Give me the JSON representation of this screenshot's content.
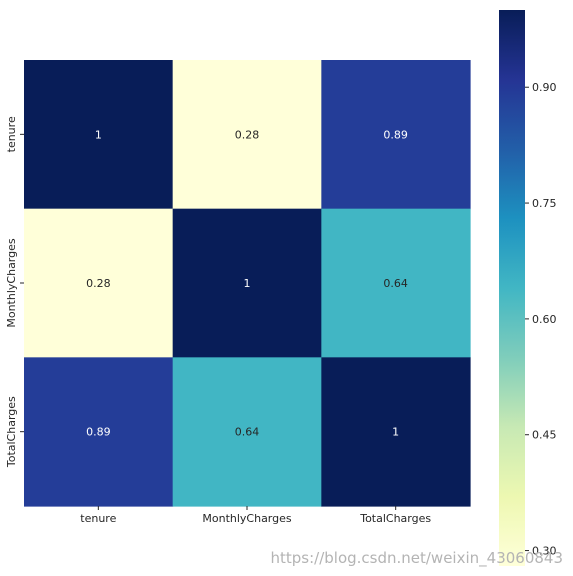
{
  "chart_data": {
    "type": "heatmap",
    "title": "",
    "xlabel": "",
    "ylabel": "",
    "x_categories": [
      "tenure",
      "MonthlyCharges",
      "TotalCharges"
    ],
    "y_categories": [
      "tenure",
      "MonthlyCharges",
      "TotalCharges"
    ],
    "values": [
      [
        1.0,
        0.28,
        0.89
      ],
      [
        0.28,
        1.0,
        0.64
      ],
      [
        0.89,
        0.64,
        1.0
      ]
    ],
    "annotations": [
      [
        "1",
        "0.28",
        "0.89"
      ],
      [
        "0.28",
        "1",
        "0.64"
      ],
      [
        "0.89",
        "0.64",
        "1"
      ]
    ],
    "colormap": "YlGnBu",
    "colormap_stops": [
      "#ffffd9",
      "#edf8b1",
      "#c7e9b4",
      "#7fcdbb",
      "#41b6c4",
      "#1d91c0",
      "#225ea8",
      "#253494",
      "#081d58"
    ],
    "color_range": [
      0.28,
      1.0
    ],
    "colorbar": {
      "ticks": [
        0.3,
        0.45,
        0.6,
        0.75,
        0.9
      ],
      "tick_labels": [
        "0.30",
        "0.45",
        "0.60",
        "0.75",
        "0.90"
      ]
    },
    "grid": false,
    "legend": "colorbar-right"
  },
  "watermark": "https://blog.csdn.net/weixin_43060843"
}
